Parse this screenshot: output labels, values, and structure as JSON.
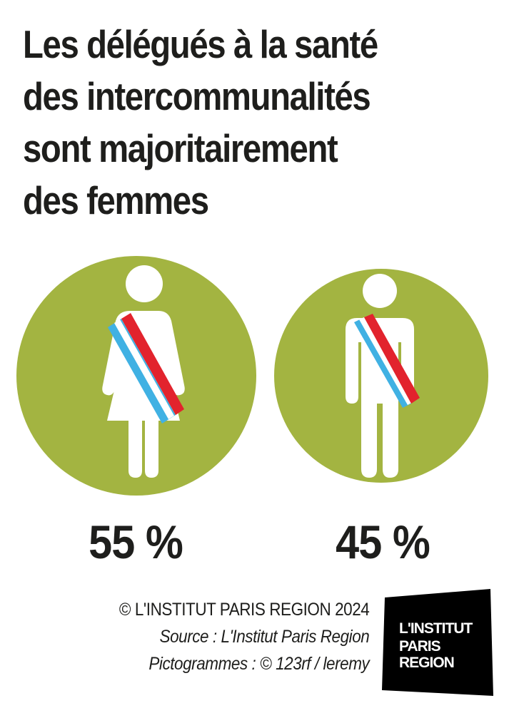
{
  "title_lines": [
    "Les délégués à la santé",
    "des intercommunalités",
    "sont majoritairement",
    "des femmes"
  ],
  "chart_data": {
    "type": "pictogram",
    "categories": [
      "femmes",
      "hommes"
    ],
    "values": [
      55,
      45
    ],
    "value_labels": [
      "55 %",
      "45 %"
    ],
    "unit": "%"
  },
  "credits": {
    "copyright": "© L'INSTITUT PARIS REGION 2024",
    "source": "Source : L'Institut Paris Region",
    "pictograms": "Pictogrammes : © 123rf / leremy"
  },
  "logo": {
    "line1": "L'INSTITUT",
    "line2": "PARIS",
    "line3": "REGION"
  },
  "icons": {
    "woman": "woman-with-sash-icon",
    "man": "man-with-sash-icon"
  },
  "colors": {
    "circle": "#a3b441",
    "figure": "#ffffff",
    "sash_blue": "#40b1e3",
    "sash_red": "#e2232d",
    "text": "#1e1e1c",
    "logo_bg": "#000000"
  }
}
